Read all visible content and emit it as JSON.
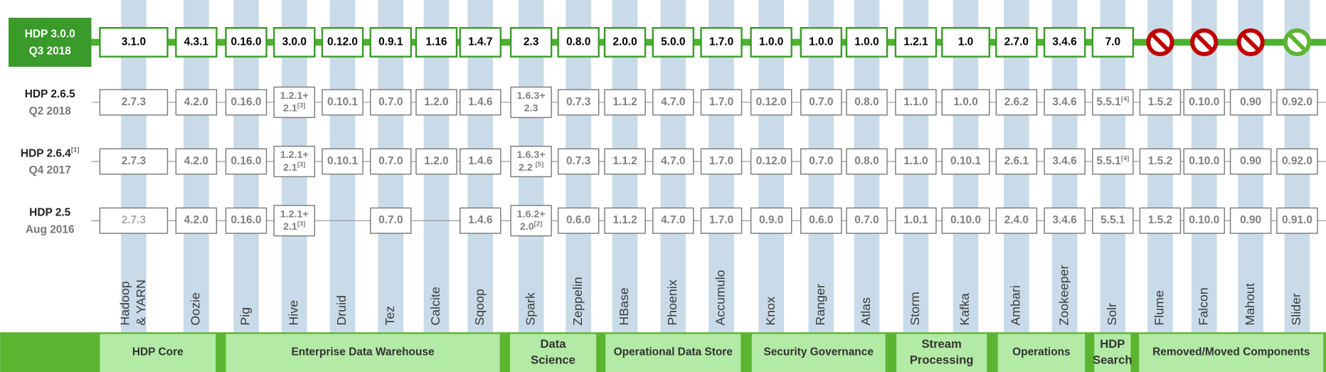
{
  "components": [
    [
      "Hadoop",
      "& YARN"
    ],
    [
      "Oozie"
    ],
    [
      "Pig"
    ],
    [
      "Hive"
    ],
    [
      "Druid"
    ],
    [
      "Tez"
    ],
    [
      "Calcite"
    ],
    [
      "Sqoop"
    ],
    [
      "Spark"
    ],
    [
      "Zeppelin"
    ],
    [
      "HBase"
    ],
    [
      "Phoenix"
    ],
    [
      "Accumulo"
    ],
    [
      "Knox"
    ],
    [
      "Ranger"
    ],
    [
      "Atlas"
    ],
    [
      "Storm"
    ],
    [
      "Kafka"
    ],
    [
      "Ambari"
    ],
    [
      "Zookeeper"
    ],
    [
      "Solr"
    ],
    [
      "Flume"
    ],
    [
      "Falcon"
    ],
    [
      "Mahout"
    ],
    [
      "Slider"
    ]
  ],
  "releases": [
    {
      "name": "HDP 3.0.0",
      "date": "Q3 2018",
      "cells": [
        "3.1.0",
        "4.3.1",
        "0.16.0",
        "3.0.0",
        "0.12.0",
        "0.9.1",
        "1.16",
        "1.4.7",
        "2.3",
        "0.8.0",
        "2.0.0",
        "5.0.0",
        "1.7.0",
        "1.0.0",
        "1.0.0",
        "1.0.0",
        "1.2.1",
        "1.0",
        "2.7.0",
        "3.4.6",
        "7.0",
        {
          "icon_color": "#c00000"
        },
        {
          "icon_color": "#c00000"
        },
        {
          "icon_color": "#c00000"
        },
        {
          "icon_color": "#5cb531"
        }
      ]
    },
    {
      "name": "HDP 2.6.5",
      "date": "Q2 2018",
      "cells": [
        "2.7.3",
        "4.2.0",
        "0.16.0",
        {
          "lines": [
            "1.2.1+",
            "2.1"
          ],
          "note": "[3]"
        },
        "0.10.1",
        "0.7.0",
        "1.2.0",
        "1.4.6",
        {
          "lines": [
            "1.6.3+",
            "2.3"
          ]
        },
        "0.7.3",
        "1.1.2",
        "4.7.0",
        "1.7.0",
        "0.12.0",
        "0.7.0",
        "0.8.0",
        "1.1.0",
        "1.0.0",
        "2.6.2",
        "3.4.6",
        {
          "lines": [
            "5.5.1"
          ],
          "note": "[4]"
        },
        "1.5.2",
        "0.10.0",
        "0.90",
        "0.92.0"
      ]
    },
    {
      "name": "HDP 2.6.4",
      "note": "[1]",
      "date": "Q4 2017",
      "cells": [
        "2.7.3",
        "4.2.0",
        "0.16.0",
        {
          "lines": [
            "1.2.1+",
            "2.1"
          ],
          "note": "[3]"
        },
        "0.10.1",
        "0.7.0",
        "1.2.0",
        "1.4.6",
        {
          "lines": [
            "1.6.3+",
            "2.2 "
          ],
          "note": "[5]"
        },
        "0.7.3",
        "1.1.2",
        "4.7.0",
        "1.7.0",
        "0.12.0",
        "0.7.0",
        "0.8.0",
        "1.1.0",
        "0.10.1",
        "2.6.1",
        "3.4.6",
        {
          "lines": [
            "5.5.1"
          ],
          "note": "[4]"
        },
        "1.5.2",
        "0.10.0",
        "0.90",
        "0.92.0"
      ]
    },
    {
      "name": "HDP 2.5",
      "date": "Aug 2016",
      "cells": [
        "2.7.3",
        "4.2.0",
        "0.16.0",
        {
          "lines": [
            "1.2.1+",
            "2.1"
          ],
          "note": "[3]"
        },
        null,
        "0.7.0",
        null,
        "1.4.6",
        {
          "lines": [
            "1.6.2+",
            "2.0"
          ],
          "note": "[2]"
        },
        "0.6.0",
        "1.1.2",
        "4.7.0",
        "1.7.0",
        "0.9.0",
        "0.6.0",
        "0.7.0",
        "1.0.1",
        "0.10.0",
        "2.4.0",
        "3.4.6",
        "5.5.1",
        "1.5.2",
        "0.10.0",
        "0.90",
        "0.91.0"
      ]
    }
  ],
  "groups": [
    [
      "HDP Core"
    ],
    [
      "Enterprise Data Warehouse"
    ],
    [
      "Data",
      "Science"
    ],
    [
      "Operational Data Store"
    ],
    [
      "Security Governance"
    ],
    [
      "Stream",
      "Processing"
    ],
    [
      "Operations"
    ],
    [
      "HDP",
      "Search"
    ],
    [
      "Removed/Moved Components"
    ]
  ]
}
